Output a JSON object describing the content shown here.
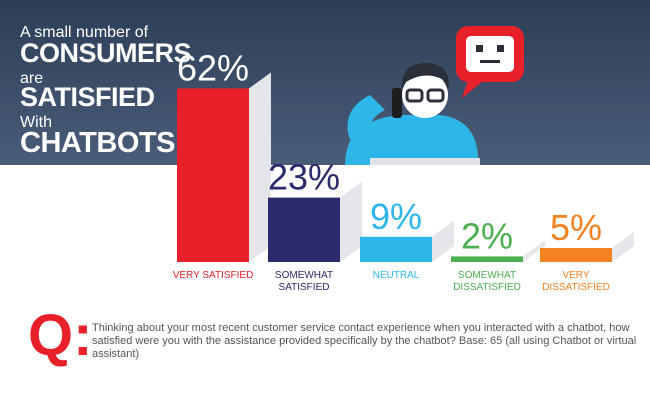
{
  "chart_data": {
    "type": "bar",
    "title_lines": [
      "A small number of",
      "CONSUMERS",
      "are",
      "SATISFIED",
      "With",
      "CHATBOTS"
    ],
    "categories": [
      "VERY SATISFIED",
      "SOMEWHAT SATISFIED",
      "NEUTRAL",
      "SOMEWHAT DISSATISFIED",
      "VERY DISSATISFIED"
    ],
    "values": [
      62,
      23,
      9,
      2,
      5
    ],
    "value_labels": [
      "62%",
      "23%",
      "9%",
      "2%",
      "5%"
    ],
    "colors": [
      "#e8202a",
      "#2b2a6b",
      "#2fb6e8",
      "#4caf50",
      "#f58220"
    ],
    "question_mark": "Q:",
    "question": "Thinking about your most recent customer service contact experience when you interacted with a chatbot, how satisfied were you with the assistance provided specifically by the chatbot? Base: 65 (all using Chatbot or virtual assistant)"
  }
}
